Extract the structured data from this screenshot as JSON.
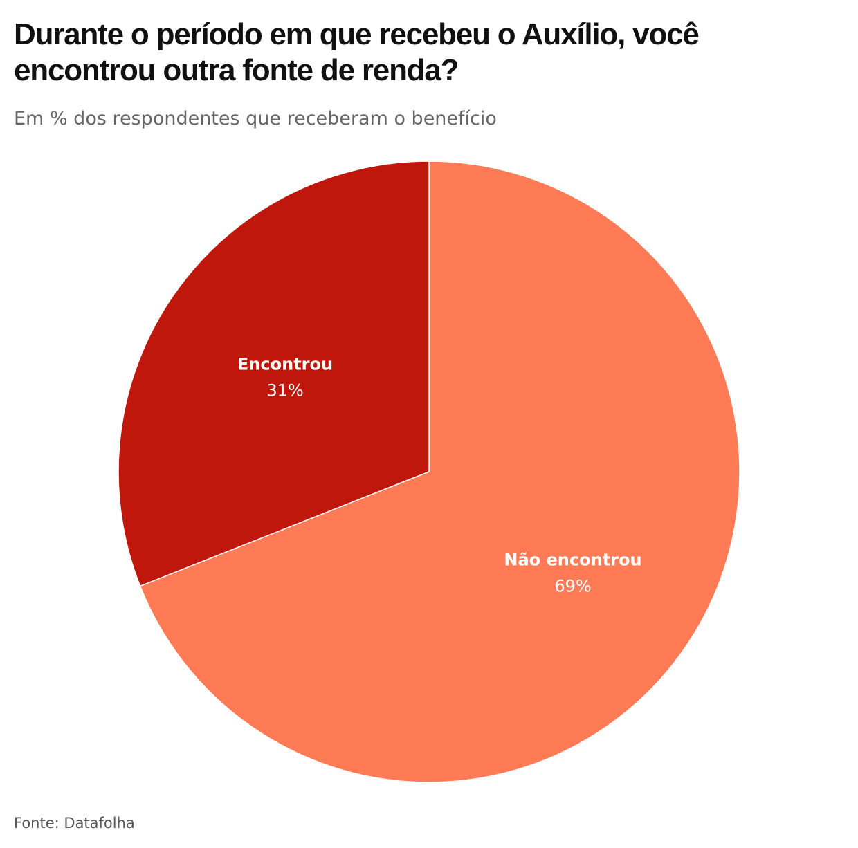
{
  "chart_data": {
    "type": "pie",
    "title": "Durante o período em que recebeu o Auxílio, você encontrou outra fonte de renda?",
    "subtitle": "Em % dos respondentes que receberam o benefício",
    "unit": "%",
    "slices": [
      {
        "label": "Não encontrou",
        "value": 69,
        "value_label": "69%",
        "color": "#fe7b56"
      },
      {
        "label": "Encontrou",
        "value": 31,
        "value_label": "31%",
        "color": "#c0170c"
      }
    ],
    "start": "12 o'clock",
    "direction": "clockwise"
  },
  "source": "Fonte: Datafolha"
}
